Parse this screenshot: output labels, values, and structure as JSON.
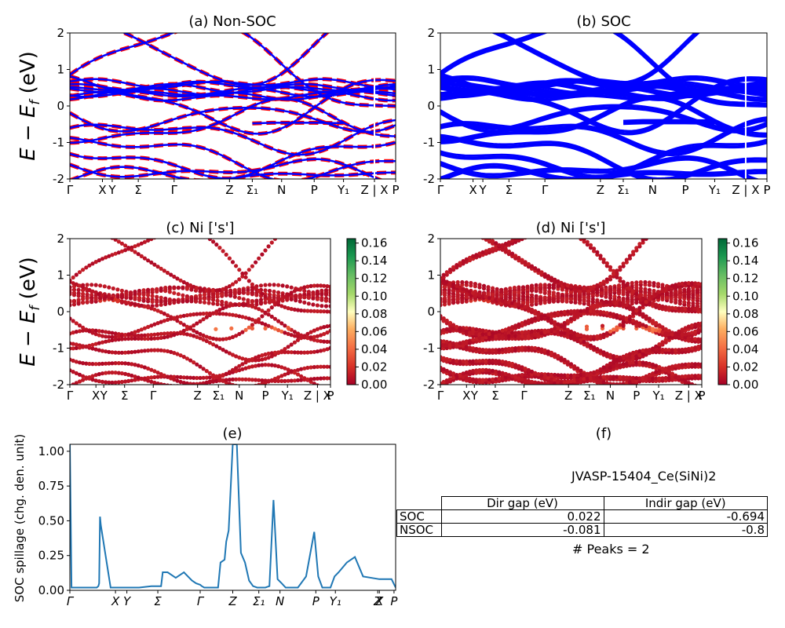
{
  "chart_data": [
    {
      "type": "line",
      "title": "(a) Non-SOC",
      "ylabel": "E - E_f (eV)",
      "ylim": [
        -2,
        2
      ],
      "yticks": [
        -2,
        -1,
        0,
        1,
        2
      ],
      "xticks": [
        "Γ",
        "X",
        "Y",
        "Σ",
        "Γ",
        "Z",
        "Σ₁",
        "N",
        "P",
        "Y₁",
        "Z | X",
        "P"
      ],
      "series": [
        {
          "style": "red-dashed",
          "color": "#ff0000"
        },
        {
          "style": "blue-solid",
          "color": "#0000ff"
        }
      ],
      "bands_approx": [
        {
          "y": [
            0.55,
            0.6,
            0.8,
            0.6,
            0.45,
            0.4,
            0.45,
            0.5,
            0.45,
            0.4,
            0.45,
            0.6
          ]
        },
        {
          "y": [
            0.4,
            0.45,
            0.5,
            0.45,
            0.4,
            0.35,
            0.4,
            0.42,
            0.4,
            0.38,
            0.4,
            0.45
          ]
        },
        {
          "y": [
            0.25,
            0.3,
            0.35,
            0.3,
            0.25,
            0.3,
            0.3,
            0.25,
            0.3,
            0.3,
            0.25,
            0.3
          ]
        },
        {
          "y": [
            -0.8,
            -0.75,
            -0.7,
            -0.6,
            -0.5,
            -0.5,
            -0.6,
            -0.8,
            -0.5,
            -0.5,
            null,
            null
          ]
        },
        {
          "y": [
            -1.4,
            -1.2,
            -1.0,
            -1.2,
            -1.3,
            -1.0,
            -1.2,
            -1.6,
            -1.5,
            -1.3,
            -1.1,
            -0.9
          ]
        },
        {
          "y": [
            -1.9,
            -1.7,
            -1.6,
            -1.8,
            -1.7,
            -1.6,
            -1.8,
            -1.7,
            -1.9,
            -1.8,
            -1.6,
            -1.7
          ]
        }
      ]
    },
    {
      "type": "line",
      "title": "(b) SOC",
      "ylim": [
        -2,
        2
      ],
      "yticks": [
        -2,
        -1,
        0,
        1,
        2
      ],
      "xticks": [
        "Γ",
        "X",
        "Y",
        "Σ",
        "Γ",
        "Z",
        "Σ₁",
        "N",
        "P",
        "Y₁",
        "Z | X",
        "P"
      ],
      "series": [
        {
          "style": "blue-solid",
          "color": "#0000ff"
        }
      ]
    },
    {
      "type": "scatter",
      "title": "(c)  Ni ['s']",
      "ylabel": "E - E_f (eV)",
      "ylim": [
        -2,
        2
      ],
      "yticks": [
        -2,
        -1,
        0,
        1,
        2
      ],
      "xticks": [
        "Γ",
        "X",
        "Y",
        "Σ",
        "Γ",
        "Z",
        "Σ₁",
        "N",
        "P",
        "Y₁",
        "Z | X",
        "P"
      ],
      "colorbar": {
        "min": 0.0,
        "max": 0.165,
        "ticks": [
          "0.00",
          "0.02",
          "0.04",
          "0.06",
          "0.08",
          "0.10",
          "0.12",
          "0.14",
          "0.16"
        ],
        "cmap": "RdYlGn"
      }
    },
    {
      "type": "scatter",
      "title": "(d) Ni ['s']",
      "ylim": [
        -2,
        2
      ],
      "yticks": [
        -2,
        -1,
        0,
        1,
        2
      ],
      "xticks": [
        "Γ",
        "X",
        "Y",
        "Σ",
        "Γ",
        "Z",
        "Σ₁",
        "N",
        "P",
        "Y₁",
        "Z | X",
        "P"
      ],
      "colorbar": {
        "min": 0.0,
        "max": 0.165,
        "ticks": [
          "0.00",
          "0.02",
          "0.04",
          "0.06",
          "0.08",
          "0.10",
          "0.12",
          "0.14",
          "0.16"
        ],
        "cmap": "RdYlGn"
      }
    },
    {
      "type": "line",
      "title": "(e)",
      "ylabel": "SOC spillage (chg. den. unit)",
      "ylim": [
        0,
        1.05
      ],
      "yticks": [
        "0.00",
        "0.25",
        "0.50",
        "0.75",
        "1.00"
      ],
      "xticks": [
        "Γ",
        "X",
        "Y",
        "Σ",
        "Γ",
        "Z",
        "Σ₁",
        "N",
        "P",
        "Y₁",
        "Z",
        "X",
        "P"
      ],
      "color": "#1f77b4",
      "x": [
        0,
        0.02,
        0.1,
        0.33,
        0.35,
        0.36,
        0.37,
        0.38,
        0.5,
        0.52,
        0.55,
        0.57,
        0.6,
        0.62,
        0.65,
        0.7,
        0.85,
        1.0,
        1.12,
        1.14,
        1.2,
        1.3,
        1.4,
        1.45,
        1.5,
        1.55,
        1.6,
        1.62,
        1.65,
        1.7,
        1.8,
        1.82,
        1.85,
        1.9,
        1.92,
        1.95,
        2.0,
        2.05,
        2.1,
        2.15,
        2.2,
        2.25,
        2.3,
        2.35,
        2.4,
        2.45,
        2.5,
        2.55,
        2.6,
        2.65,
        2.7,
        2.8,
        2.9,
        3.0,
        3.05,
        3.1,
        3.15,
        3.2,
        3.25,
        3.3,
        3.4,
        3.5,
        3.6,
        3.8,
        3.9,
        3.95,
        4.0
      ],
      "y": [
        1.05,
        0.02,
        0.02,
        0.02,
        0.03,
        0.05,
        0.53,
        0.47,
        0.02,
        0.02,
        0.02,
        0.02,
        0.02,
        0.02,
        0.02,
        0.02,
        0.02,
        0.03,
        0.03,
        0.13,
        0.13,
        0.09,
        0.13,
        0.1,
        0.07,
        0.05,
        0.04,
        0.03,
        0.02,
        0.02,
        0.02,
        0.02,
        0.2,
        0.22,
        0.35,
        0.43,
        1.05,
        1.05,
        0.27,
        0.2,
        0.07,
        0.03,
        0.02,
        0.02,
        0.02,
        0.03,
        0.65,
        0.08,
        0.05,
        0.02,
        0.02,
        0.02,
        0.1,
        0.42,
        0.1,
        0.02,
        0.02,
        0.02,
        0.1,
        0.13,
        0.2,
        0.24,
        0.1,
        0.08,
        0.08,
        0.08,
        0.02
      ]
    }
  ],
  "panel_f": {
    "title": "(f)",
    "material": "JVASP-15404_Ce(SiNi)2",
    "table": {
      "columns": [
        "Dir gap (eV)",
        "Indir gap (eV)"
      ],
      "rows": [
        {
          "label": "SOC",
          "dir": "0.022",
          "indir": "-0.694"
        },
        {
          "label": "NSOC",
          "dir": "-0.081",
          "indir": "-0.8"
        }
      ]
    },
    "peaks": "# Peaks = 2"
  },
  "colors": {
    "red": "#ff0000",
    "blue": "#0000ff",
    "spill": "#1f77b4"
  }
}
